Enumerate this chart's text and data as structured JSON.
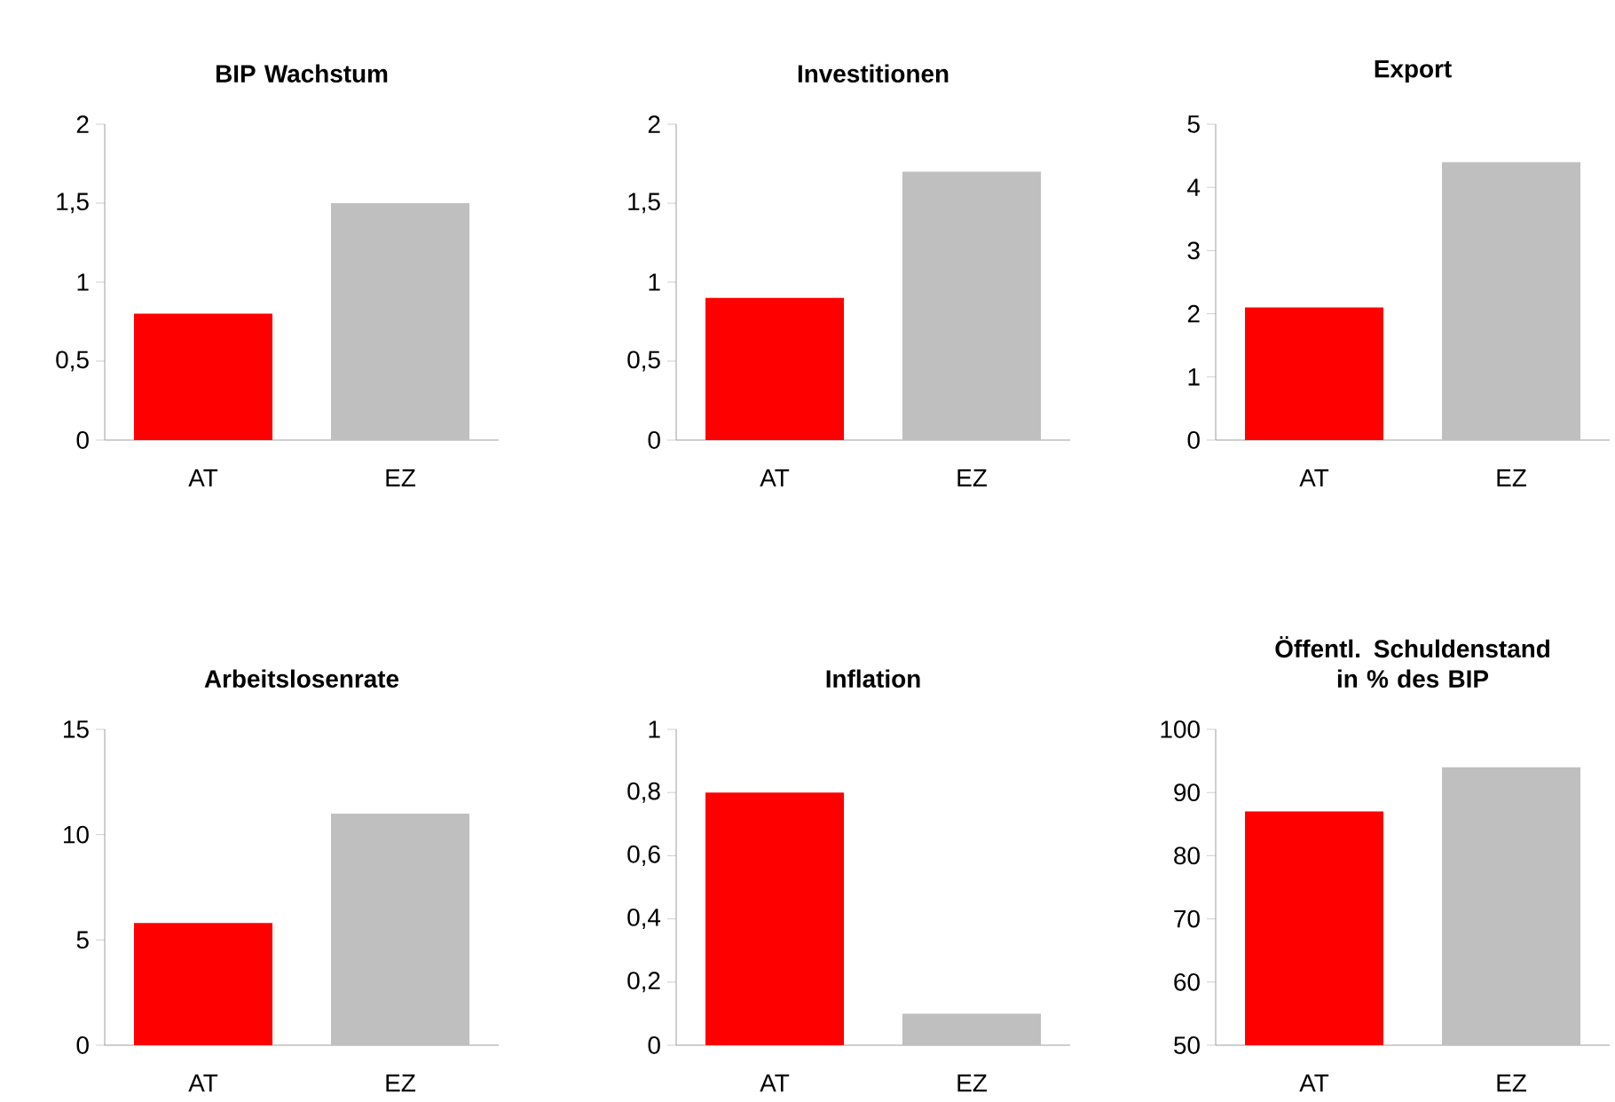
{
  "chart_data": [
    {
      "type": "bar",
      "title": "BIP Wachstum",
      "categories": [
        "AT",
        "EZ"
      ],
      "values": [
        0.8,
        1.5
      ],
      "colors": [
        "#ff0000",
        "#bfbfbf"
      ],
      "ylim": [
        0,
        2
      ],
      "yticks": [
        0,
        {
          "value": 0.5,
          "label": "0,5"
        },
        1,
        {
          "value": 1.5,
          "label": "1,5"
        },
        2
      ]
    },
    {
      "type": "bar",
      "title": "Investitionen",
      "categories": [
        "AT",
        "EZ"
      ],
      "values": [
        0.9,
        1.7
      ],
      "colors": [
        "#ff0000",
        "#bfbfbf"
      ],
      "ylim": [
        0,
        2
      ],
      "yticks": [
        0,
        {
          "value": 0.5,
          "label": "0,5"
        },
        1,
        {
          "value": 1.5,
          "label": "1,5"
        },
        2
      ]
    },
    {
      "type": "bar",
      "title": "Export",
      "categories": [
        "AT",
        "EZ"
      ],
      "values": [
        2.1,
        4.4
      ],
      "colors": [
        "#ff0000",
        "#bfbfbf"
      ],
      "ylim": [
        0,
        5
      ],
      "yticks": [
        0,
        1,
        2,
        3,
        4,
        5
      ]
    },
    {
      "type": "bar",
      "title": "Arbeitslosenrate",
      "categories": [
        "AT",
        "EZ"
      ],
      "values": [
        5.8,
        11
      ],
      "colors": [
        "#ff0000",
        "#bfbfbf"
      ],
      "ylim": [
        0,
        15
      ],
      "yticks": [
        0,
        5,
        10,
        15
      ]
    },
    {
      "type": "bar",
      "title": "Inflation",
      "categories": [
        "AT",
        "EZ"
      ],
      "values": [
        0.8,
        0.1
      ],
      "colors": [
        "#ff0000",
        "#bfbfbf"
      ],
      "ylim": [
        0,
        1
      ],
      "yticks": [
        0,
        {
          "value": 0.2,
          "label": "0,2"
        },
        {
          "value": 0.4,
          "label": "0,4"
        },
        {
          "value": 0.6,
          "label": "0,6"
        },
        {
          "value": 0.8,
          "label": "0,8"
        },
        1
      ]
    },
    {
      "type": "bar",
      "title": "Öffentl. Schuldenstand in % des BIP",
      "categories": [
        "AT",
        "EZ"
      ],
      "values": [
        87,
        94
      ],
      "colors": [
        "#ff0000",
        "#bfbfbf"
      ],
      "ylim": [
        50,
        100
      ],
      "yticks": [
        50,
        60,
        70,
        80,
        90,
        100
      ]
    }
  ]
}
